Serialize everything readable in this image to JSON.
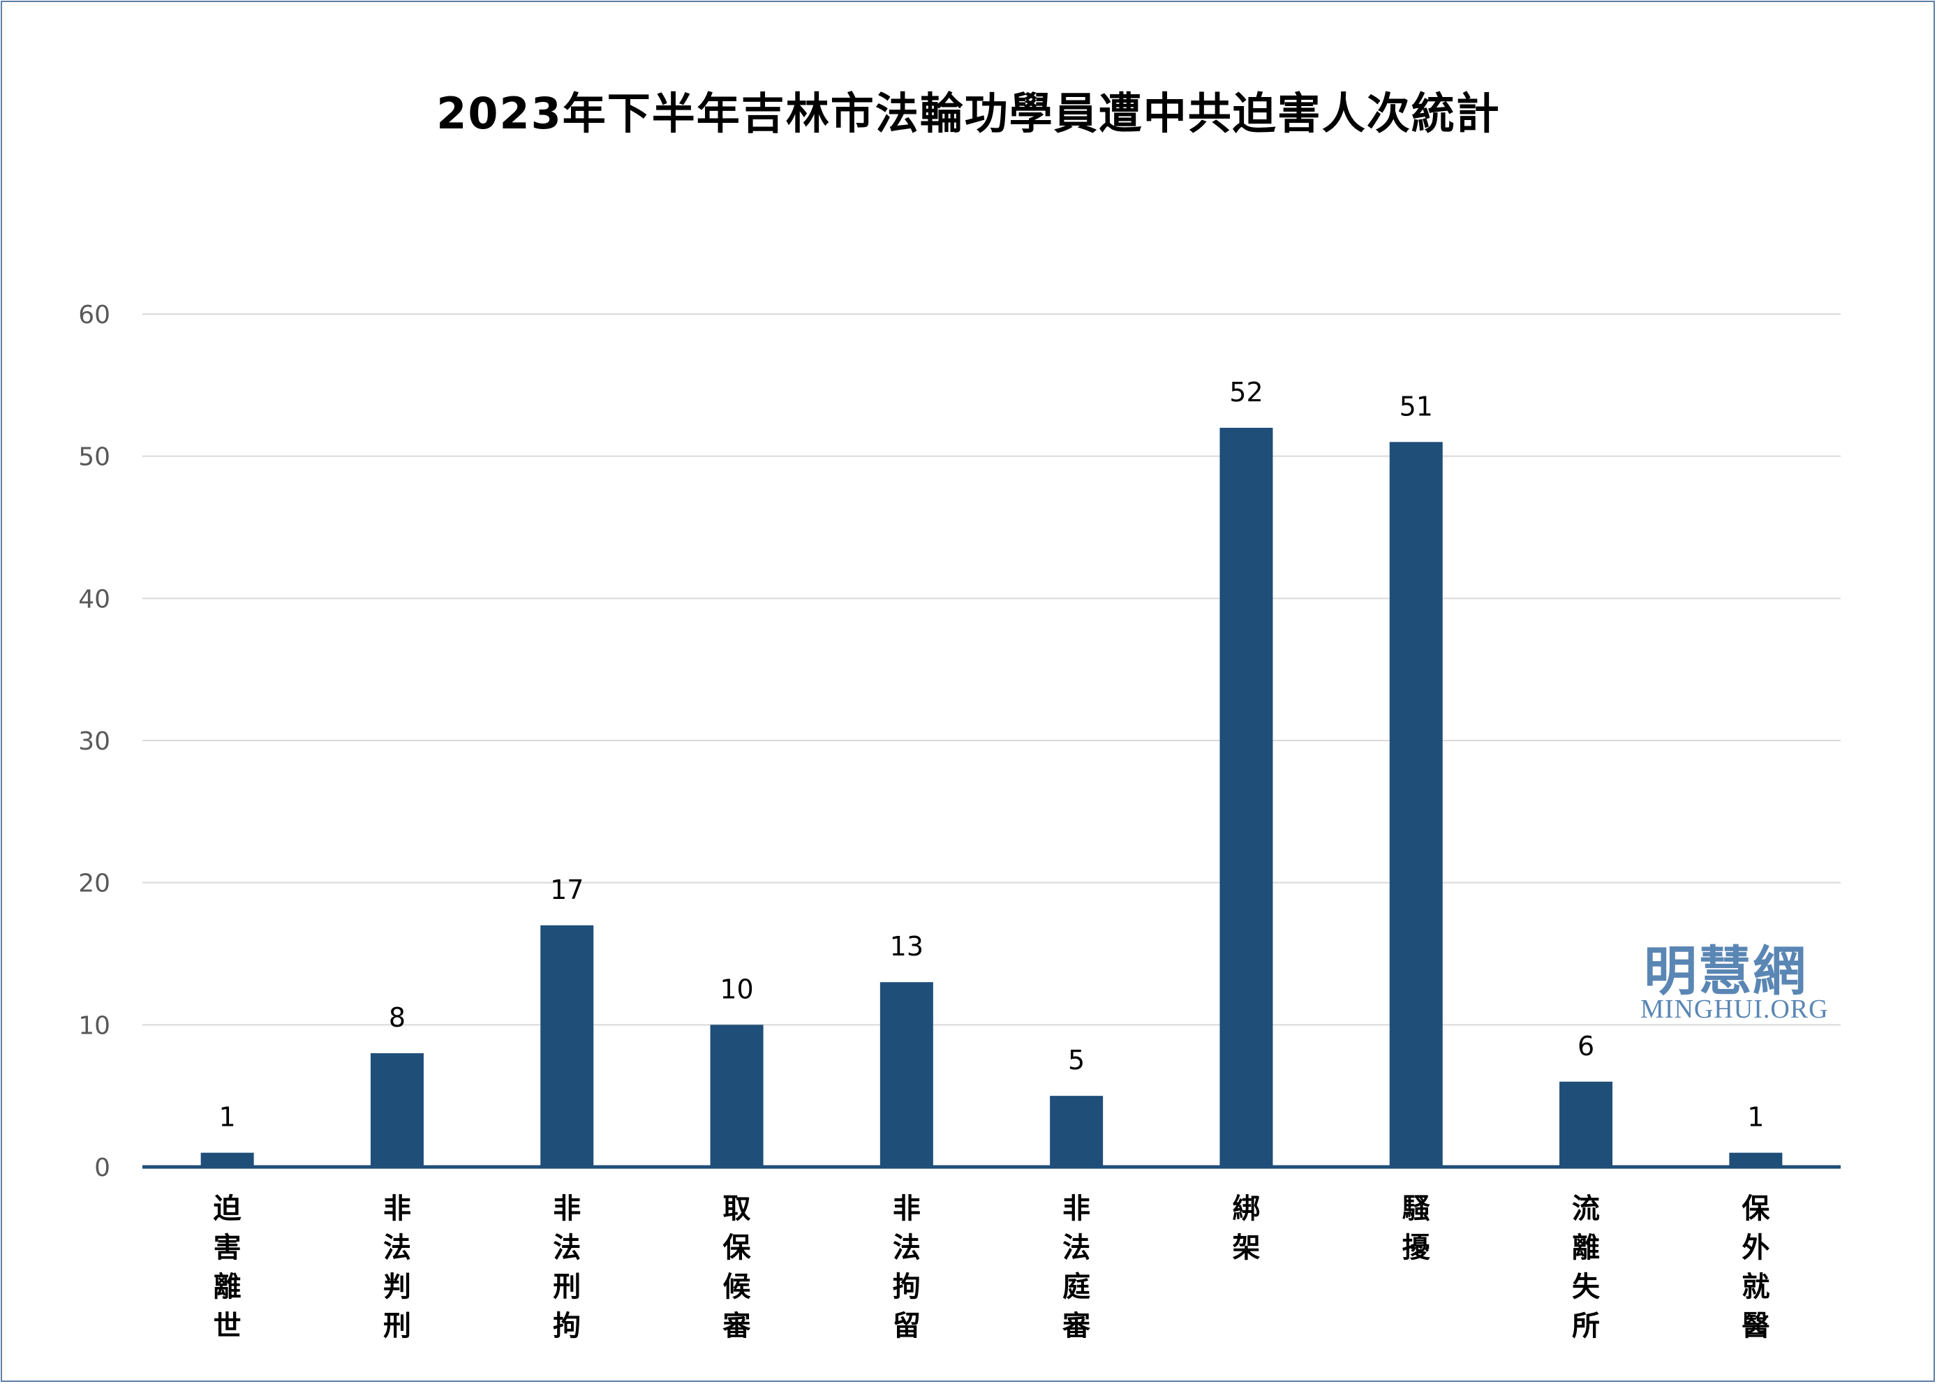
{
  "chart_data": {
    "type": "bar",
    "title": "2023年下半年吉林市法輪功學員遭中共迫害人次統計",
    "categories": [
      "迫害離世",
      "非法判刑",
      "非法刑拘",
      "取保候審",
      "非法拘留",
      "非法庭審",
      "綁架",
      "騷擾",
      "流離失所",
      "保外就醫"
    ],
    "values": [
      1,
      8,
      17,
      10,
      13,
      5,
      52,
      51,
      6,
      1
    ],
    "xlabel": "",
    "ylabel": "",
    "ylim": [
      0,
      60
    ],
    "yticks": [
      0,
      10,
      20,
      30,
      40,
      50,
      60
    ],
    "grid": true,
    "data_labels": true,
    "bar_color": "#1f4e79"
  },
  "watermark": {
    "logo_cn": "明慧網",
    "logo_en": "MINGHUI.ORG",
    "color": "#5a86b4"
  }
}
